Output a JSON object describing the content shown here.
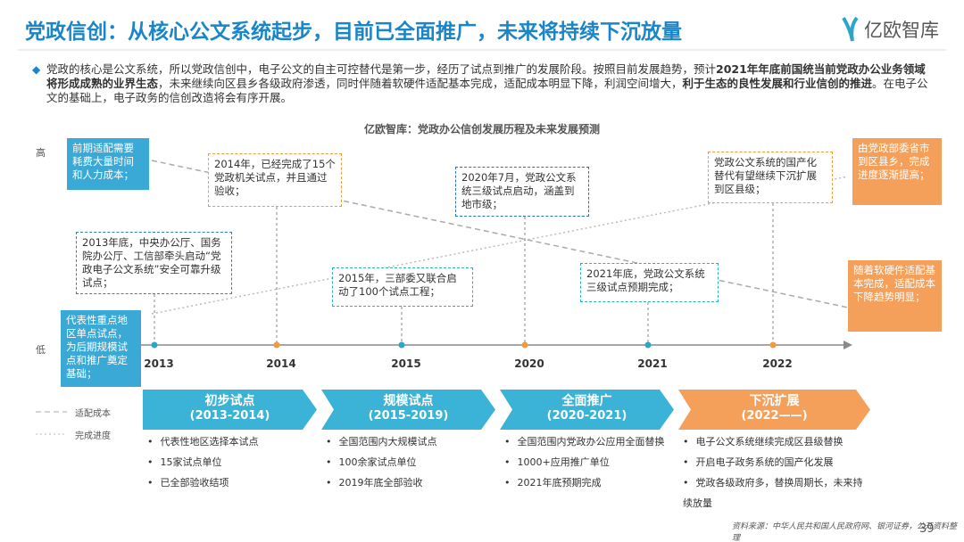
{
  "header": {
    "title": "党政信创：从核心公文系统起步，目前已全面推广，未来将持续下沉放量",
    "logo": "亿欧智库"
  },
  "intro": {
    "segments": [
      {
        "text": "党政的核心是公文系统，所以党政信创中，电子公文的自主可控替代是第一步，经历了试点到推广的发展阶段。按照目前发展趋势，预计",
        "bold": false
      },
      {
        "text": "2021年年底前国统当前党政办公业务领域将形成成熟的业界生态",
        "bold": true
      },
      {
        "text": "，未来继续向区县乡各级政府渗透，同时伴随着软硬件适配基本完成，适配成本明显下降，利润空间增大，",
        "bold": false
      },
      {
        "text": "利于生态的良性发展和行业信创的推进",
        "bold": true
      },
      {
        "text": "。在电子公文的基础上，电子政务的信创改造将会有序开展。",
        "bold": false
      }
    ]
  },
  "diagram": {
    "title": "亿欧智库：党政办公信创发展历程及未来发展预测",
    "y_high": "高",
    "y_low": "低",
    "years": [
      {
        "label": "2013",
        "color": "#2aa6c8"
      },
      {
        "label": "2014",
        "color": "#f39a3c"
      },
      {
        "label": "2015",
        "color": "#2aa6c8"
      },
      {
        "label": "2020",
        "color": "#f39a3c"
      },
      {
        "label": "2021",
        "color": "#2aa6c8"
      },
      {
        "label": "2022",
        "color": "#f39a3c"
      }
    ],
    "notes": [
      {
        "text": "2013年底，中央办公厅、国务院办公厅、工信部牵头启动“党政电子公文系统”安全可靠升级试点；",
        "color": "#2a7fc8"
      },
      {
        "text": "2014年，已经完成了15个党政机关试点，并且通过验收；",
        "color": "#f39a3c"
      },
      {
        "text": "2015年，三部委又联合启动了100个试点工程；",
        "color": "#2ab0b8"
      },
      {
        "text": "2020年7月，党政公文系统三级试点启动，涵盖到地市级；",
        "color": "#2a6fc0"
      },
      {
        "text": "2021年底，党政公文系统三级试点预期完成；",
        "color": "#2ab0b8"
      },
      {
        "text": "党政公文系统的国产化替代有望继续下沉扩展到区县级；",
        "color": "#f39a3c"
      }
    ],
    "side_notes": [
      {
        "text": "前期适配需要耗费大量时间和人力成本；",
        "color": "#3aa9d6"
      },
      {
        "text": "代表性重点地区单点试点，为后期规模试点和推广奠定基础；",
        "color": "#3aa9d6"
      },
      {
        "text": "由党政部委省市到区县乡，完成进度逐渐提高；",
        "color": "#f5a05a"
      },
      {
        "text": "随着软硬件适配基本完成，适配成本下降趋势明显；",
        "color": "#f5a05a"
      }
    ],
    "legend": [
      {
        "name": "适配成本"
      },
      {
        "name": "完成进度"
      }
    ],
    "phases": [
      {
        "title": "初步试点",
        "period": "(2013-2014)",
        "color": "#3bb3d6",
        "items": [
          "代表性地区选择本试点",
          "15家试点单位",
          "已全部验收结项"
        ]
      },
      {
        "title": "规模试点",
        "period": "(2015-2019)",
        "color": "#3bb3d6",
        "items": [
          "全国范围内大规模试点",
          "100余家试点单位",
          "2019年底全部验收"
        ]
      },
      {
        "title": "全面推广",
        "period": "(2020-2021)",
        "color": "#3bb3d6",
        "items": [
          "全国范围内党政办公应用全面替换",
          "1000+应用推广单位",
          "2021年底预期完成"
        ]
      },
      {
        "title": "下沉扩展",
        "period": "(2022——)",
        "color": "#f5a05a",
        "items": [
          "电子公文系统继续完成区县级替换",
          "开启电子政务系统的国产化发展",
          "党政各级政府多，替换周期长，未来持续放量"
        ]
      }
    ]
  },
  "footer": {
    "source": "资料来源：中华人民共和国人民政府网、银河证券，公开资料整理",
    "page": "39"
  }
}
